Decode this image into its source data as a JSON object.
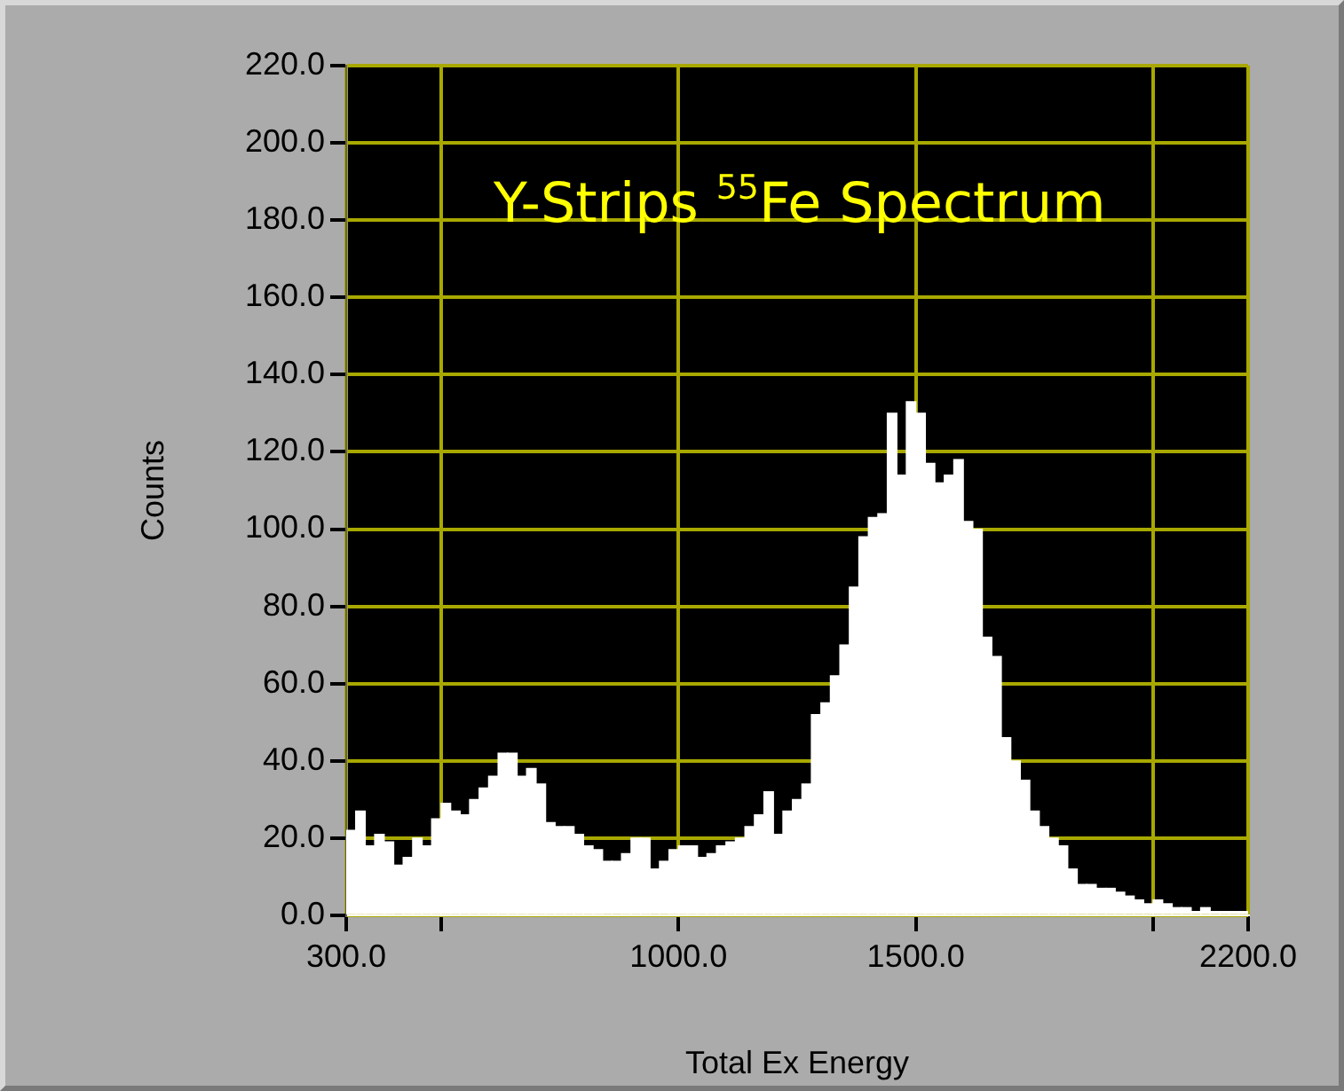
{
  "chart_data": {
    "type": "histogram",
    "title": "Y-Strips $^{55}$Fe Spectrum",
    "xlabel": "Total Ex Energy",
    "ylabel": "Counts",
    "bins": [
      300,
      320,
      340,
      360,
      380,
      400,
      420,
      440,
      460,
      480,
      500,
      520,
      540,
      560,
      580,
      600,
      620,
      640,
      660,
      680,
      700,
      720,
      740,
      760,
      780,
      800,
      820,
      840,
      860,
      880,
      900,
      920,
      940,
      960,
      980,
      1000,
      1020,
      1040,
      1060,
      1080,
      1100,
      1120,
      1140,
      1160,
      1180,
      1200,
      1220,
      1240,
      1260,
      1280,
      1300,
      1320,
      1340,
      1360,
      1380,
      1400,
      1420,
      1440,
      1460,
      1480,
      1500,
      1520,
      1540,
      1560,
      1580,
      1600,
      1620,
      1640,
      1660,
      1680,
      1700,
      1720,
      1740,
      1760,
      1780,
      1800,
      1820,
      1840,
      1860,
      1880,
      1900,
      1920,
      1940,
      1960,
      1980,
      2000,
      2020,
      2040,
      2060,
      2080,
      2100,
      2120,
      2140,
      2160,
      2180,
      2200
    ],
    "values": [
      22,
      27,
      18,
      21,
      19,
      13,
      15,
      20,
      18,
      25,
      29,
      27,
      26,
      30,
      33,
      36,
      42,
      42,
      36,
      38,
      34,
      24,
      23,
      23,
      21,
      18,
      17,
      14,
      14,
      16,
      20,
      20,
      12,
      14,
      17,
      18,
      18,
      15,
      16,
      18,
      19,
      20,
      23,
      26,
      32,
      21,
      27,
      30,
      34,
      52,
      55,
      62,
      70,
      85,
      98,
      103,
      104,
      130,
      114,
      133,
      130,
      117,
      112,
      114,
      118,
      102,
      100,
      72,
      67,
      46,
      40,
      35,
      27,
      23,
      20,
      18,
      12,
      8,
      8,
      7,
      7,
      6,
      5,
      4,
      3,
      4,
      3,
      2,
      2,
      1,
      2,
      1,
      1,
      1,
      1
    ],
    "color": "#ffffff",
    "xlim": [
      300,
      2200
    ],
    "xticks": [
      {
        "value": 300,
        "label": "300.0"
      },
      {
        "value": 500,
        "label": null
      },
      {
        "value": 1000,
        "label": "1000.0"
      },
      {
        "value": 1500,
        "label": "1500.0"
      },
      {
        "value": 2000,
        "label": null
      },
      {
        "value": 2200,
        "label": "2200.0"
      }
    ],
    "ylim": [
      0,
      220
    ],
    "yticks": [
      {
        "value": 0,
        "label": "0.0"
      },
      {
        "value": 20,
        "label": "20.0"
      },
      {
        "value": 40,
        "label": "40.0"
      },
      {
        "value": 60,
        "label": "60.0"
      },
      {
        "value": 80,
        "label": "80.0"
      },
      {
        "value": 100,
        "label": "100.0"
      },
      {
        "value": 120,
        "label": "120.0"
      },
      {
        "value": 140,
        "label": "140.0"
      },
      {
        "value": 160,
        "label": "160.0"
      },
      {
        "value": 180,
        "label": "180.0"
      },
      {
        "value": 200,
        "label": "200.0"
      },
      {
        "value": 220,
        "label": "220.0"
      }
    ],
    "grid": true,
    "legend": false
  }
}
